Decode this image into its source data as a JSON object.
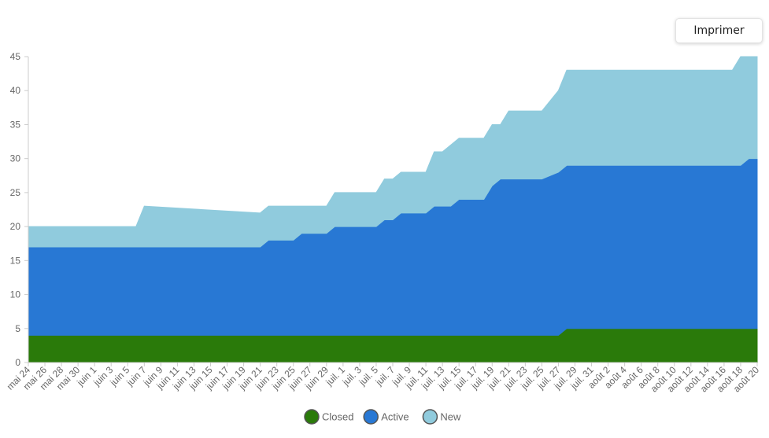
{
  "toolbar": {
    "print_label": "Imprimer"
  },
  "colors": {
    "Closed": "#2a7a0a",
    "Active": "#2878d4",
    "New": "#90cbdd",
    "grid": "#e6e6e6",
    "axis": "#cccccc"
  },
  "chart_data": {
    "type": "area",
    "stacked": true,
    "title": "",
    "xlabel": "",
    "ylabel": "",
    "ylim": [
      0,
      45
    ],
    "y_ticks": [
      0,
      5,
      10,
      15,
      20,
      25,
      30,
      35,
      40,
      45
    ],
    "grid": false,
    "legend": "bottom-center",
    "x_start": "2024-05-24",
    "x_end": "2024-08-20",
    "x_tick_labels": [
      "mai 24",
      "mai 26",
      "mai 28",
      "mai 30",
      "juin 1",
      "juin 3",
      "juin 5",
      "juin 7",
      "juin 9",
      "juin 11",
      "juin 13",
      "juin 15",
      "juin 17",
      "juin 19",
      "juin 21",
      "juin 23",
      "juin 25",
      "juin 27",
      "juin 29",
      "juil. 1",
      "juil. 3",
      "juil. 5",
      "juil. 7",
      "juil. 9",
      "juil. 11",
      "juil. 13",
      "juil. 15",
      "juil. 17",
      "juil. 19",
      "juil. 21",
      "juil. 23",
      "juil. 25",
      "juil. 27",
      "juil. 29",
      "juil. 31",
      "août 2",
      "août 4",
      "août 6",
      "août 8",
      "août 10",
      "août 12",
      "août 14",
      "août 16",
      "août 18",
      "août 20"
    ],
    "series": [
      {
        "name": "Closed",
        "points": [
          [
            "2024-05-24",
            4
          ],
          [
            "2024-07-24",
            4
          ],
          [
            "2024-07-27",
            4
          ],
          [
            "2024-07-28",
            5
          ],
          [
            "2024-08-20",
            5
          ]
        ]
      },
      {
        "name": "Active",
        "points": [
          [
            "2024-05-24",
            13
          ],
          [
            "2024-06-21",
            13
          ],
          [
            "2024-06-22",
            14
          ],
          [
            "2024-06-25",
            14
          ],
          [
            "2024-06-26",
            15
          ],
          [
            "2024-06-29",
            15
          ],
          [
            "2024-06-30",
            16
          ],
          [
            "2024-07-05",
            16
          ],
          [
            "2024-07-06",
            17
          ],
          [
            "2024-07-07",
            17
          ],
          [
            "2024-07-08",
            18
          ],
          [
            "2024-07-11",
            18
          ],
          [
            "2024-07-12",
            19
          ],
          [
            "2024-07-13",
            19
          ],
          [
            "2024-07-14",
            19
          ],
          [
            "2024-07-15",
            20
          ],
          [
            "2024-07-18",
            20
          ],
          [
            "2024-07-19",
            22
          ],
          [
            "2024-07-20",
            23
          ],
          [
            "2024-07-24",
            23
          ],
          [
            "2024-07-25",
            23
          ],
          [
            "2024-07-27",
            24
          ],
          [
            "2024-07-28",
            24
          ],
          [
            "2024-08-17",
            24
          ],
          [
            "2024-08-18",
            24
          ],
          [
            "2024-08-19",
            25
          ],
          [
            "2024-08-20",
            25
          ]
        ]
      },
      {
        "name": "New",
        "points": [
          [
            "2024-05-24",
            3
          ],
          [
            "2024-06-06",
            3
          ],
          [
            "2024-06-07",
            6
          ],
          [
            "2024-06-21",
            5
          ],
          [
            "2024-06-22",
            5
          ],
          [
            "2024-06-25",
            5
          ],
          [
            "2024-06-26",
            4
          ],
          [
            "2024-06-29",
            4
          ],
          [
            "2024-06-30",
            5
          ],
          [
            "2024-07-05",
            5
          ],
          [
            "2024-07-06",
            6
          ],
          [
            "2024-07-07",
            6
          ],
          [
            "2024-07-08",
            6
          ],
          [
            "2024-07-11",
            6
          ],
          [
            "2024-07-12",
            8
          ],
          [
            "2024-07-13",
            8
          ],
          [
            "2024-07-14",
            9
          ],
          [
            "2024-07-15",
            9
          ],
          [
            "2024-07-18",
            9
          ],
          [
            "2024-07-19",
            9
          ],
          [
            "2024-07-20",
            8
          ],
          [
            "2024-07-21",
            10
          ],
          [
            "2024-07-24",
            10
          ],
          [
            "2024-07-25",
            10
          ],
          [
            "2024-07-27",
            12
          ],
          [
            "2024-07-28",
            14
          ],
          [
            "2024-08-17",
            14
          ],
          [
            "2024-08-18",
            16
          ],
          [
            "2024-08-19",
            15
          ],
          [
            "2024-08-20",
            15
          ]
        ]
      }
    ]
  }
}
